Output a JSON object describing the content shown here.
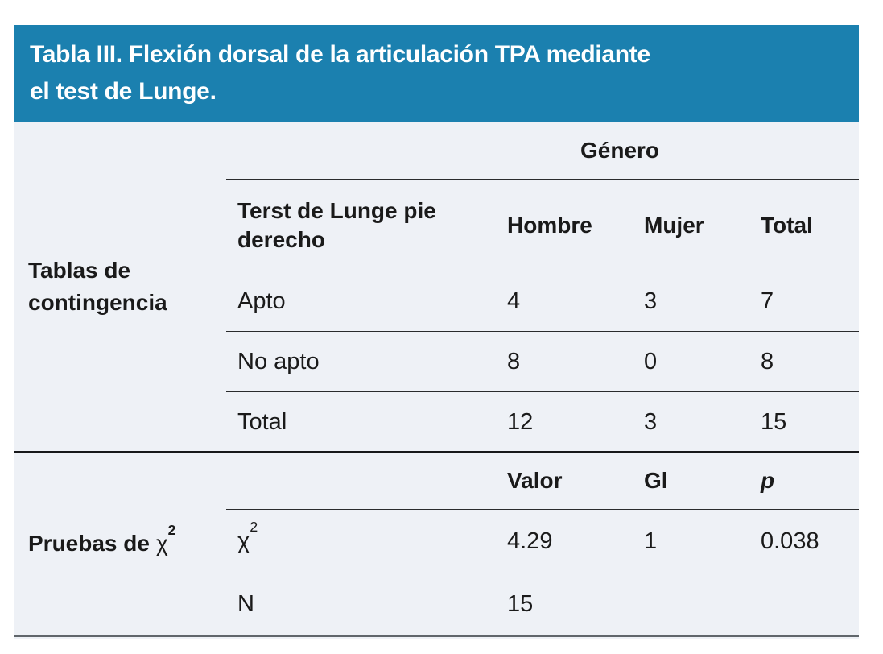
{
  "title": {
    "line1": "Tabla III. Flexión dorsal de la articulación TPA mediante",
    "line2": "el test de Lunge."
  },
  "colors": {
    "header_bg": "#1b80af",
    "header_text": "#ffffff",
    "body_bg": "#eef1f6",
    "text": "#1a1a1a",
    "rule_dark": "#2a2b2d",
    "rule_bottom": "#60666b"
  },
  "contingency": {
    "section_label": "Tablas de contingencia",
    "group_header": "Género",
    "row_header": "Terst de Lunge pie derecho",
    "columns": [
      "Hombre",
      "Mujer",
      "Total"
    ],
    "rows": [
      {
        "label": "Apto",
        "values": [
          "4",
          "3",
          "7"
        ]
      },
      {
        "label": "No apto",
        "values": [
          "8",
          "0",
          "8"
        ]
      },
      {
        "label": "Total",
        "values": [
          "12",
          "3",
          "15"
        ]
      }
    ]
  },
  "chi_square": {
    "section_label": {
      "bold": "Pruebas de",
      "chi": "χ",
      "sup": "2"
    },
    "columns": [
      "Valor",
      "Gl",
      "p"
    ],
    "rows": [
      {
        "label": {
          "base": "χ",
          "sup": "2"
        },
        "values": [
          "4.29",
          "1",
          "0.038"
        ]
      },
      {
        "label": {
          "base": "N",
          "sup": ""
        },
        "values": [
          "15",
          "",
          ""
        ]
      }
    ]
  }
}
